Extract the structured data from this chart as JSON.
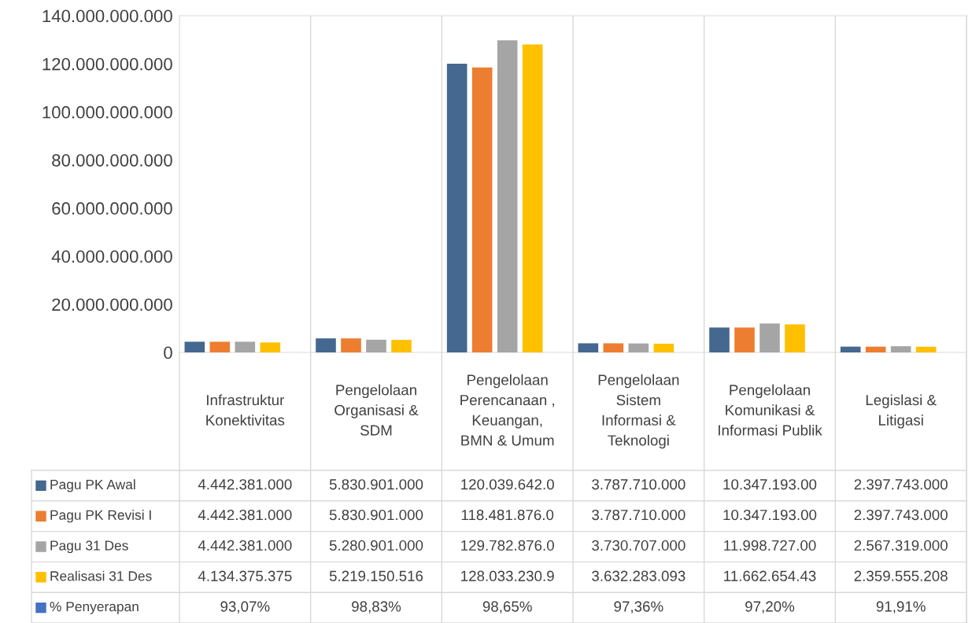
{
  "chart_data": {
    "type": "bar",
    "categories": [
      "Infrastruktur Konektivitas",
      "Pengelolaan Organisasi & SDM",
      "Pengelolaan Perencanaan , Keuangan, BMN & Umum",
      "Pengelolaan Sistem Informasi & Teknologi",
      "Pengelolaan Komunikasi & Informasi Publik",
      "Legislasi & Litigasi"
    ],
    "series": [
      {
        "name": "Pagu PK Awal",
        "color": "#44688f",
        "values": [
          4442381000,
          5830901000,
          120039642000,
          3787710000,
          10347193000,
          2397743000
        ],
        "value_labels": [
          "4.442.381.000",
          "5.830.901.000",
          "120.039.642.0",
          "3.787.710.000",
          "10.347.193.00",
          "2.397.743.000"
        ]
      },
      {
        "name": "Pagu PK Revisi I",
        "color": "#ed7d31",
        "values": [
          4442381000,
          5830901000,
          118481876000,
          3787710000,
          10347193000,
          2397743000
        ],
        "value_labels": [
          "4.442.381.000",
          "5.830.901.000",
          "118.481.876.0",
          "3.787.710.000",
          "10.347.193.00",
          "2.397.743.000"
        ]
      },
      {
        "name": "Pagu 31 Des",
        "color": "#a5a5a5",
        "values": [
          4442381000,
          5280901000,
          129782876000,
          3730707000,
          11998727000,
          2567319000
        ],
        "value_labels": [
          "4.442.381.000",
          "5.280.901.000",
          "129.782.876.0",
          "3.730.707.000",
          "11.998.727.00",
          "2.567.319.000"
        ]
      },
      {
        "name": "Realisasi 31 Des",
        "color": "#ffc000",
        "values": [
          4134375375,
          5219150516,
          128033230900,
          3632283093,
          11662654430,
          2359555208
        ],
        "value_labels": [
          "4.134.375.375",
          "5.219.150.516",
          "128.033.230.9",
          "3.632.283.093",
          "11.662.654.43",
          "2.359.555.208"
        ]
      },
      {
        "name": "% Penyerapan",
        "color": "#4472c4",
        "values": [
          93.07,
          98.83,
          98.65,
          97.36,
          97.2,
          91.91
        ],
        "value_labels": [
          "93,07%",
          "98,83%",
          "98,65%",
          "97,36%",
          "97,20%",
          "91,91%"
        ]
      }
    ],
    "legend": "bottom",
    "ylim": [
      0,
      140000000000
    ],
    "yticks": [
      0,
      {
        "value": 20000000000,
        "label": "20.000.000.000"
      },
      {
        "value": 40000000000,
        "label": "40.000.000.000"
      },
      {
        "value": 60000000000,
        "label": "60.000.000.000"
      },
      {
        "value": 80000000000,
        "label": "80.000.000.000"
      },
      {
        "value": 100000000000,
        "label": "100.000.000.000"
      },
      {
        "value": 120000000000,
        "label": "120.000.000.000"
      },
      {
        "value": 140000000000,
        "label": "140.000.000.000"
      }
    ]
  }
}
